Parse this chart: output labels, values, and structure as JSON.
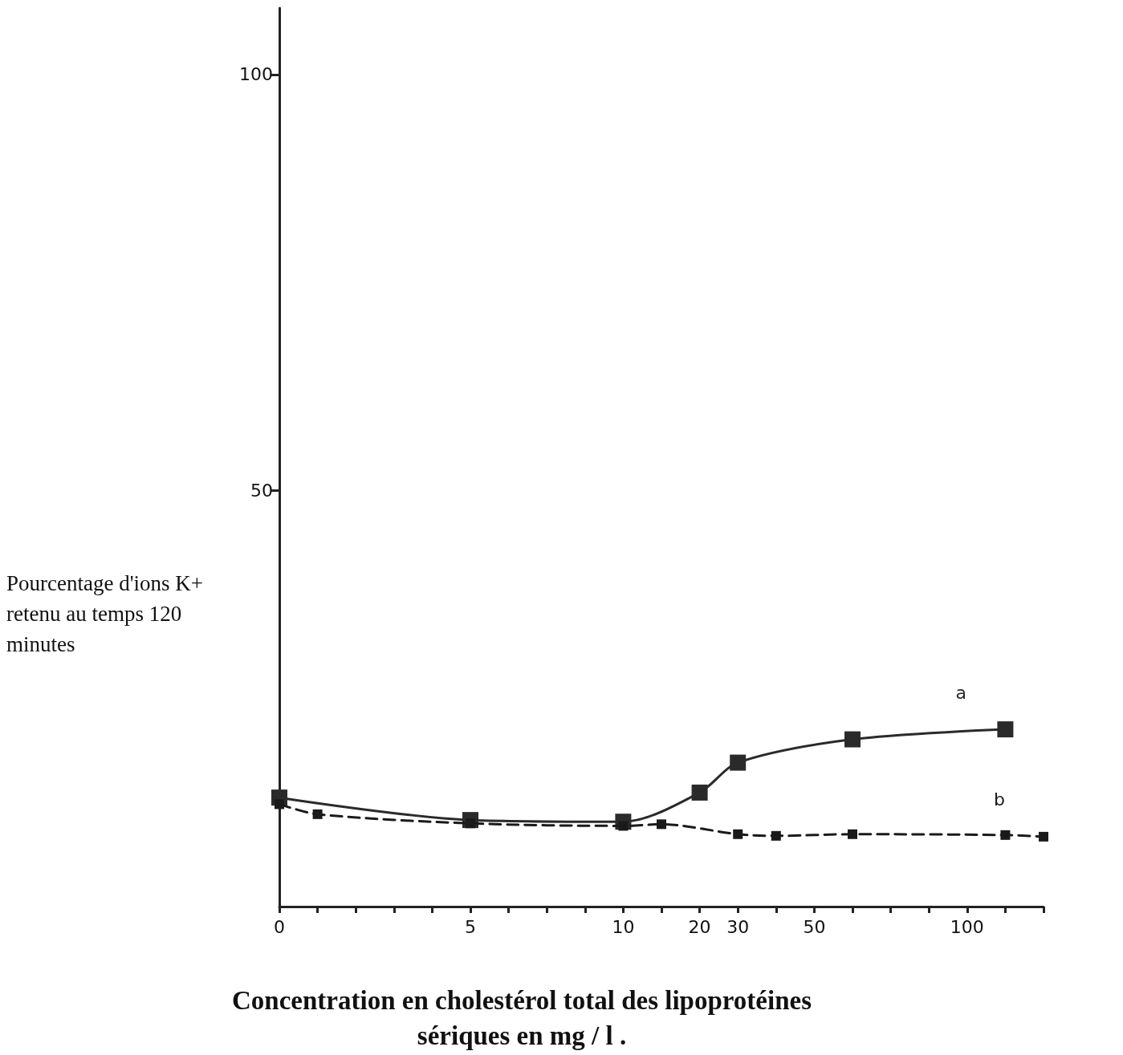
{
  "chart_data": {
    "type": "line",
    "xlabel": "Concentration en cholestérol total des lipoprotéines\nsériques en mg / l .",
    "ylabel": "Pourcentage d'ions K+\nretenu au temps 120\nminutes",
    "categories": [
      "0",
      null,
      null,
      null,
      null,
      "5",
      null,
      null,
      null,
      "10",
      null,
      "20",
      "30",
      null,
      "50",
      null,
      null,
      null,
      "100",
      null,
      null
    ],
    "series": [
      {
        "name": "a",
        "color": "#2a2a2a",
        "line_style": "solid",
        "values": [
          13.1,
          null,
          null,
          null,
          null,
          10.4,
          null,
          null,
          null,
          10.2,
          null,
          13.7,
          17.3,
          null,
          null,
          20.1,
          null,
          null,
          null,
          21.3,
          null
        ]
      },
      {
        "name": "b",
        "color": "#1a1a1a",
        "line_style": "dashed",
        "values": [
          12.3,
          11.1,
          null,
          null,
          null,
          10.0,
          null,
          null,
          null,
          9.7,
          9.9,
          null,
          8.7,
          8.5,
          null,
          8.7,
          null,
          null,
          null,
          8.6,
          8.4
        ]
      }
    ],
    "ylim": [
      0,
      108
    ],
    "yticks": [
      50,
      100
    ],
    "grid": false,
    "legend": false,
    "marker": "square"
  }
}
